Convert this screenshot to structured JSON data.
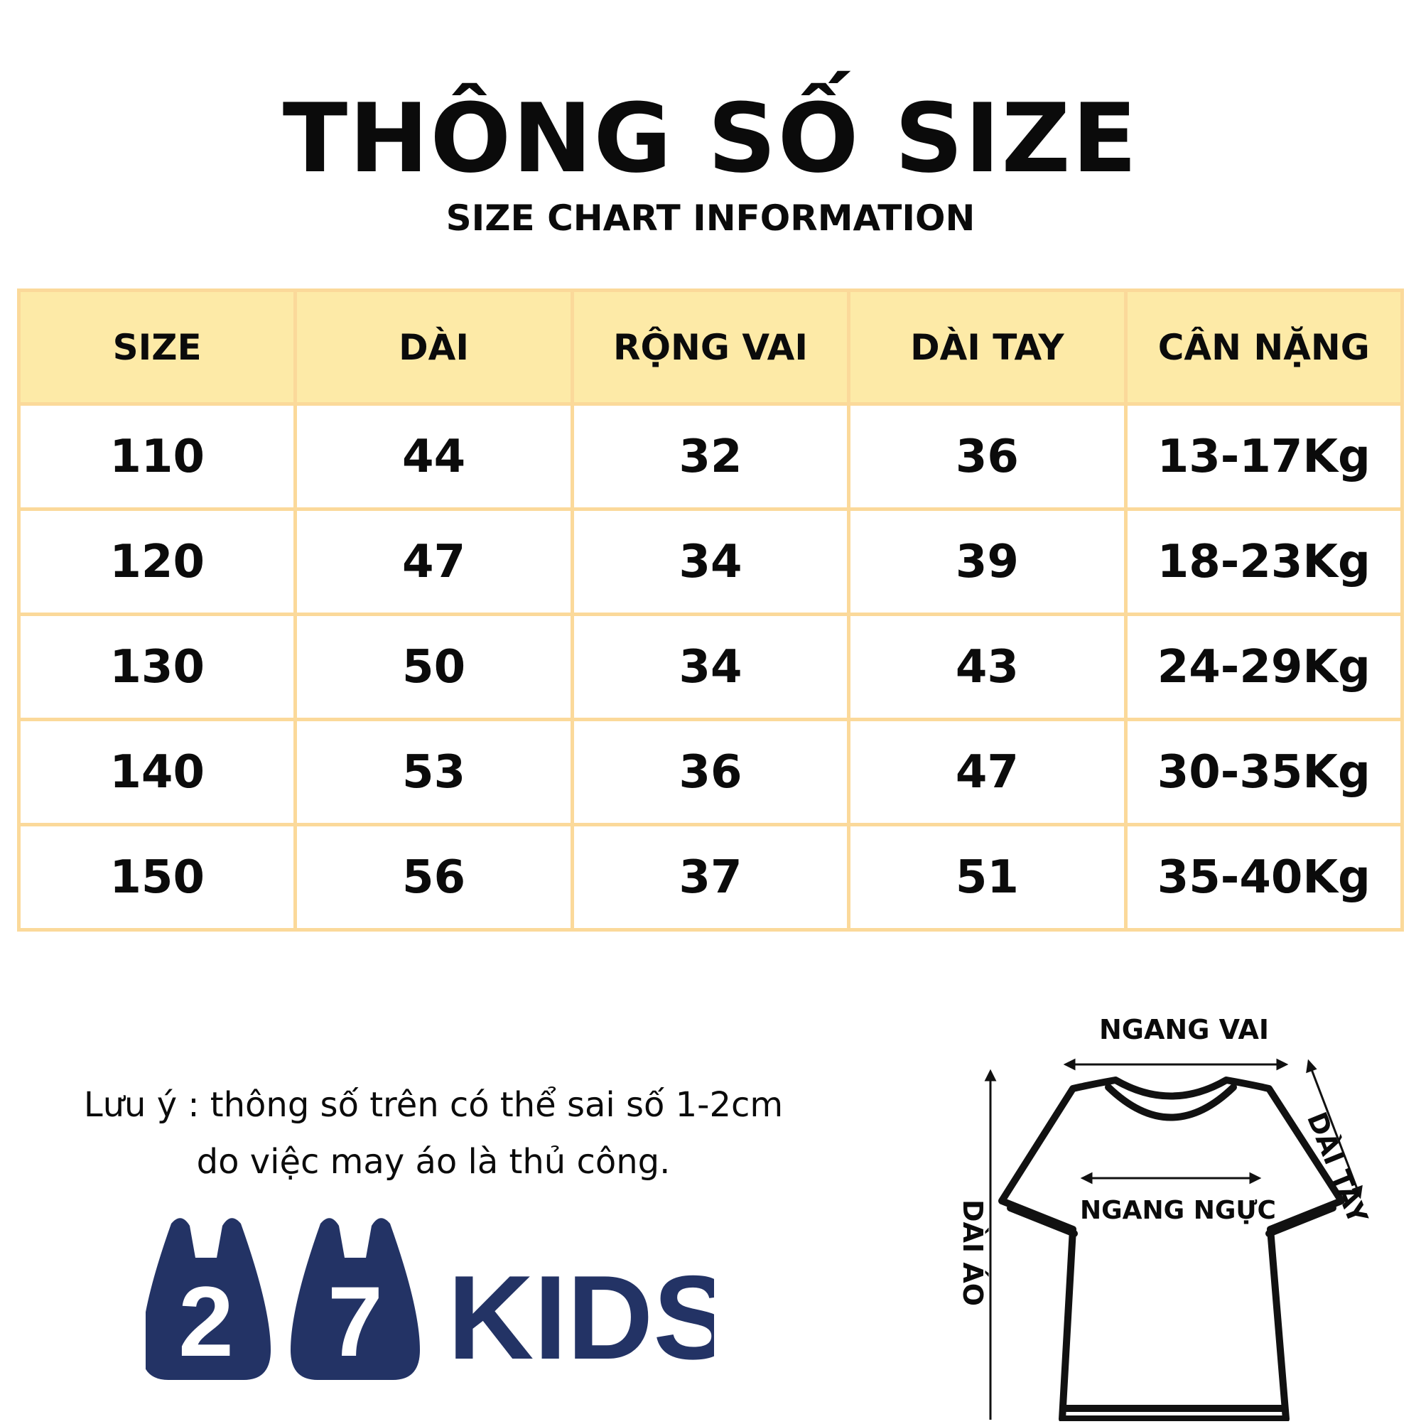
{
  "header": {
    "title": "THÔNG SỐ SIZE",
    "subtitle": "SIZE CHART INFORMATION"
  },
  "table": {
    "columns": [
      "SIZE",
      "DÀI",
      "RỘNG VAI",
      "DÀI TAY",
      "CÂN NẶNG"
    ],
    "rows": [
      [
        "110",
        "44",
        "32",
        "36",
        "13-17Kg"
      ],
      [
        "120",
        "47",
        "34",
        "39",
        "18-23Kg"
      ],
      [
        "130",
        "50",
        "34",
        "43",
        "24-29Kg"
      ],
      [
        "140",
        "53",
        "36",
        "47",
        "30-35Kg"
      ],
      [
        "150",
        "56",
        "37",
        "51",
        "35-40Kg"
      ]
    ]
  },
  "note": {
    "line1": "Lưu ý : thông số trên có thể sai số 1-2cm",
    "line2": "do việc may áo là thủ công."
  },
  "logo": {
    "digit1": "2",
    "digit2": "7",
    "text": "KIDS",
    "color": "#233365"
  },
  "diagram": {
    "shoulder_label": "NGANG VAI",
    "sleeve_label": "DÀI TAY",
    "chest_label": "NGANG NGỰC",
    "length_label": "DÀI ÁO",
    "icon": "t-shirt-icon"
  }
}
